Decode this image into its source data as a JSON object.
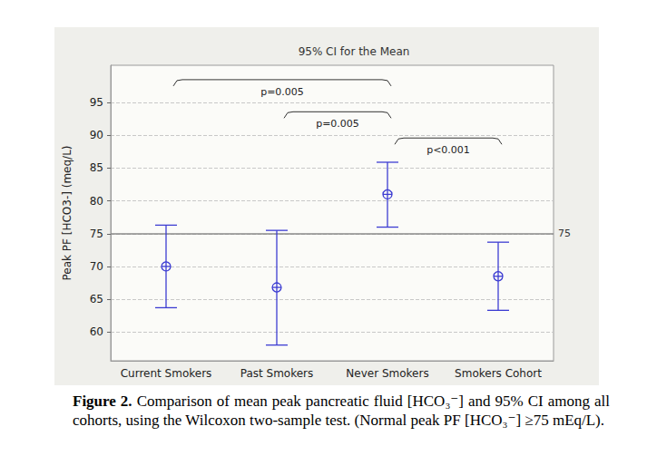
{
  "chart_data": {
    "type": "errorbar",
    "title": "95% CI for the Mean",
    "y_label": "Peak PF [HCO3-] (meq/L)",
    "categories": [
      "Current Smokers",
      "Past Smokers",
      "Never Smokers",
      "Smokers Cohort"
    ],
    "values": [
      70,
      66.8,
      81,
      68.5
    ],
    "ci_lower": [
      63.7,
      58.0,
      76.0,
      63.3
    ],
    "ci_upper": [
      76.3,
      75.5,
      85.9,
      73.7
    ],
    "color": "#3c3cd2",
    "marker": "circle-cross",
    "ylim": [
      55.6,
      100.7
    ],
    "yticks": [
      60,
      65,
      70,
      75,
      80,
      85,
      90,
      95
    ],
    "grid": true,
    "reference_line": {
      "value": 75,
      "label": "75"
    },
    "annotations": [
      {
        "from": "Current Smokers",
        "to": "Never Smokers",
        "y": 98.5,
        "label": "p=0.005"
      },
      {
        "from": "Past Smokers",
        "to": "Never Smokers",
        "y": 93.6,
        "label": "p=0.005"
      },
      {
        "from": "Never Smokers",
        "to": "Smokers Cohort",
        "y": 89.6,
        "label": "p<0.001"
      }
    ],
    "caption": {
      "label": "Figure 2.",
      "text": "Comparison of mean peak pancreatic fluid [HCO₃⁻] and 95% CI among all cohorts, using the Wilcoxon two-sample test. (Normal peak PF [HCO₃⁻] ≥75 mEq/L)."
    }
  }
}
